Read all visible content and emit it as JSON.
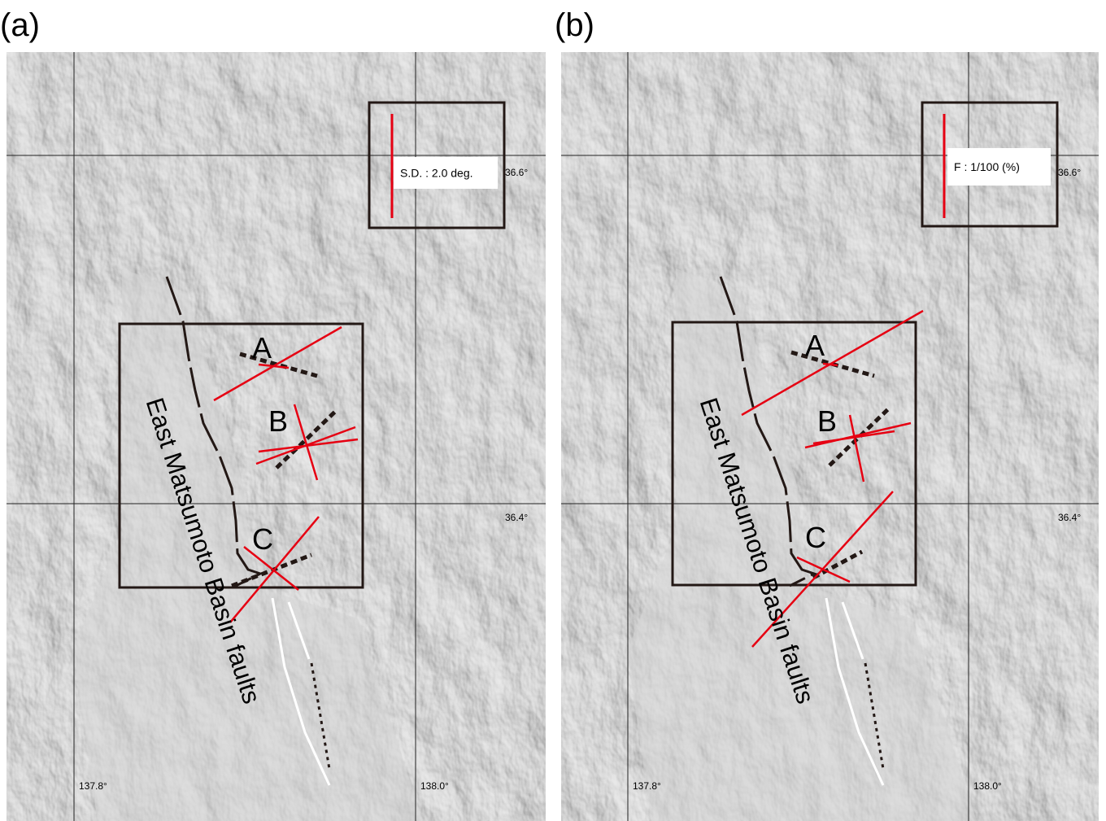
{
  "panels": [
    {
      "label": "(a)",
      "legend": "S.D. : 2.0 deg.",
      "latitudes": [
        "36.6°",
        "36.4°"
      ],
      "longitudes": [
        "137.8°",
        "138.0°"
      ],
      "sites": [
        "A",
        "B",
        "C"
      ],
      "fault_name": "East Matsumoto Basin faults"
    },
    {
      "label": "(b)",
      "legend": "F : 1/100 (%)",
      "latitudes": [
        "36.6°",
        "36.4°"
      ],
      "longitudes": [
        "137.8°",
        "138.0°"
      ],
      "sites": [
        "A",
        "B",
        "C"
      ],
      "fault_name": "East Matsumoto Basin faults"
    }
  ]
}
